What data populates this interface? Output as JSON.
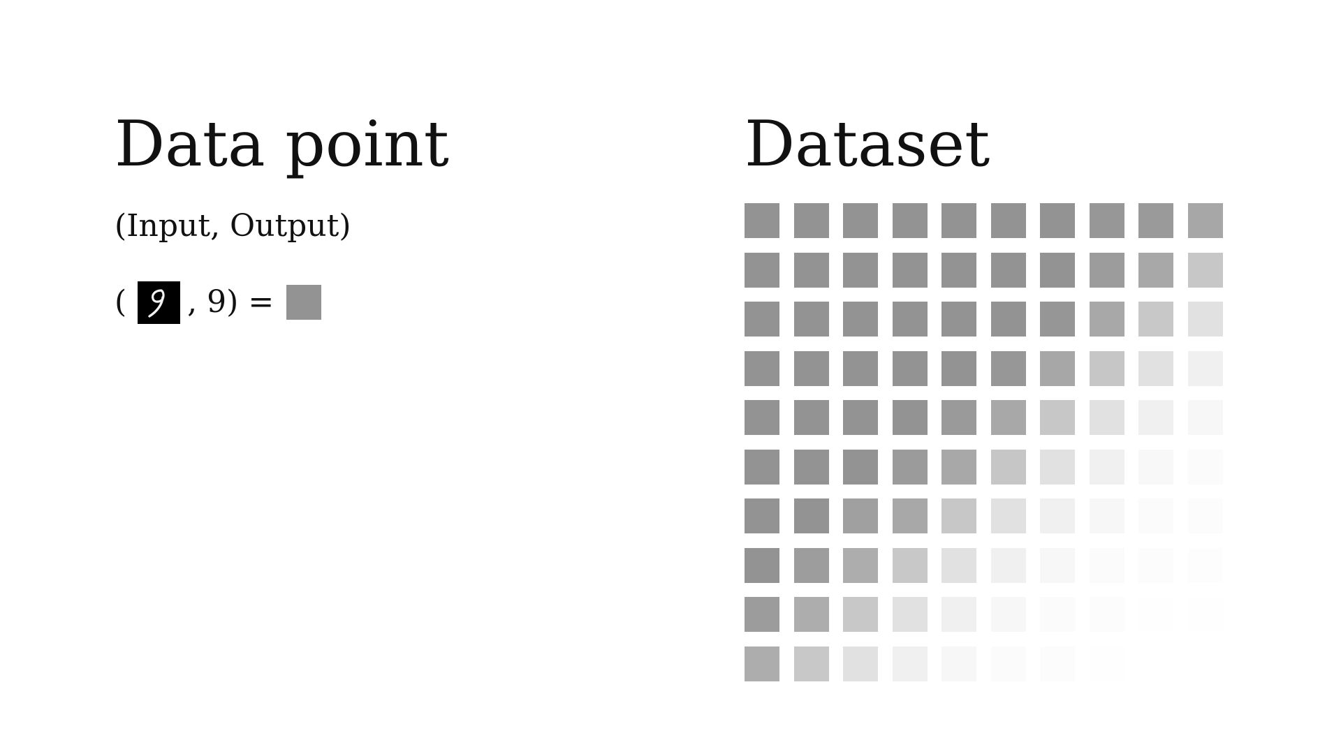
{
  "left": {
    "title": "Data point",
    "subtitle": "(Input, Output)",
    "equation": {
      "open": "(",
      "input_image": "handwritten-digit-9",
      "separator": ",",
      "label": "9",
      "close": ")",
      "equals": "=",
      "output_color": "#939393"
    }
  },
  "right": {
    "title": "Dataset",
    "grid": {
      "rows": 10,
      "cols": 10,
      "colors": [
        [
          "#939393",
          "#939393",
          "#939393",
          "#939393",
          "#939393",
          "#939393",
          "#939393",
          "#979797",
          "#9a9a9a",
          "#a7a7a7"
        ],
        [
          "#939393",
          "#939393",
          "#939393",
          "#939393",
          "#939393",
          "#939393",
          "#939393",
          "#9c9c9c",
          "#a8a8a8",
          "#c7c7c7"
        ],
        [
          "#939393",
          "#939393",
          "#939393",
          "#939393",
          "#939393",
          "#939393",
          "#969696",
          "#a8a8a8",
          "#c8c8c8",
          "#e1e1e1"
        ],
        [
          "#939393",
          "#939393",
          "#939393",
          "#939393",
          "#939393",
          "#979797",
          "#a7a7a7",
          "#c6c6c6",
          "#e1e1e1",
          "#f0f0f0"
        ],
        [
          "#939393",
          "#939393",
          "#939393",
          "#939393",
          "#9a9a9a",
          "#a8a8a8",
          "#c7c7c7",
          "#e1e1e1",
          "#f0f0f0",
          "#f7f7f7"
        ],
        [
          "#939393",
          "#939393",
          "#939393",
          "#9b9b9b",
          "#a8a8a8",
          "#c6c6c6",
          "#e1e1e1",
          "#f0f0f0",
          "#f8f8f8",
          "#fbfbfb"
        ],
        [
          "#939393",
          "#939393",
          "#a0a0a0",
          "#a8a8a8",
          "#c7c7c7",
          "#e1e1e1",
          "#f0f0f0",
          "#f7f7f7",
          "#fbfbfb",
          "#fcfcfc"
        ],
        [
          "#939393",
          "#9d9d9d",
          "#adadad",
          "#c8c8c8",
          "#e1e1e1",
          "#f0f0f0",
          "#f7f7f7",
          "#fbfbfb",
          "#fcfcfc",
          "#fdfdfd"
        ],
        [
          "#9c9c9c",
          "#adadad",
          "#c8c8c8",
          "#e1e1e1",
          "#f0f0f0",
          "#f7f7f7",
          "#fbfbfb",
          "#fcfcfc",
          "#fefefe",
          "#fefefe"
        ],
        [
          "#adadad",
          "#c8c8c8",
          "#e1e1e1",
          "#f0f0f0",
          "#f7f7f7",
          "#fbfbfb",
          "#fcfcfc",
          "#fefefe",
          "#ffffff",
          "#ffffff"
        ]
      ]
    }
  }
}
